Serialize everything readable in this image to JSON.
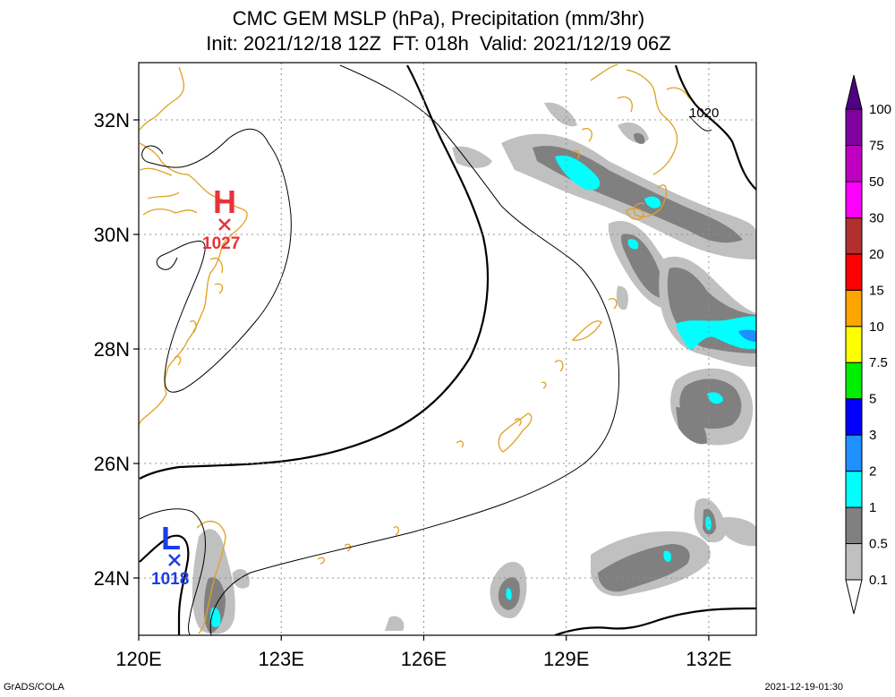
{
  "chart_data": {
    "type": "map",
    "title_line1": "CMC GEM MSLP (hPa), Precipitation (mm/3hr)",
    "title_line2": "Init: 2021/12/18 12Z  FT: 018h  Valid: 2021/12/19 06Z",
    "x_ticks": [
      "120E",
      "123E",
      "126E",
      "129E",
      "132E"
    ],
    "x_tick_values": [
      120,
      123,
      126,
      129,
      132
    ],
    "y_ticks": [
      "24N",
      "26N",
      "28N",
      "30N",
      "32N"
    ],
    "y_tick_values": [
      24,
      26,
      28,
      30,
      32
    ],
    "xlim": [
      120,
      133
    ],
    "ylim": [
      23,
      33
    ],
    "grid": true,
    "contour_label": "1020",
    "high": {
      "symbol": "H",
      "value": "1027",
      "lon": 121.8,
      "lat": 30.2,
      "color": "#e8333a"
    },
    "low": {
      "symbol": "L",
      "value": "1018",
      "lon": 120.7,
      "lat": 24.3,
      "color": "#1a3ee8"
    },
    "colorbar": {
      "labels": [
        "0.1",
        "0.5",
        "1",
        "2",
        "3",
        "5",
        "7.5",
        "10",
        "15",
        "20",
        "30",
        "50",
        "75",
        "100"
      ],
      "colors": [
        "#ffffff",
        "#c0c0c0",
        "#808080",
        "#00ffff",
        "#1e90ff",
        "#0000ff",
        "#00ee00",
        "#ffff00",
        "#ffa500",
        "#ff0000",
        "#b03030",
        "#ff00ff",
        "#c000c0",
        "#8000a0",
        "#500080"
      ]
    }
  },
  "footer": {
    "left": "GrADS/COLA",
    "right": "2021-12-19-01:30"
  }
}
